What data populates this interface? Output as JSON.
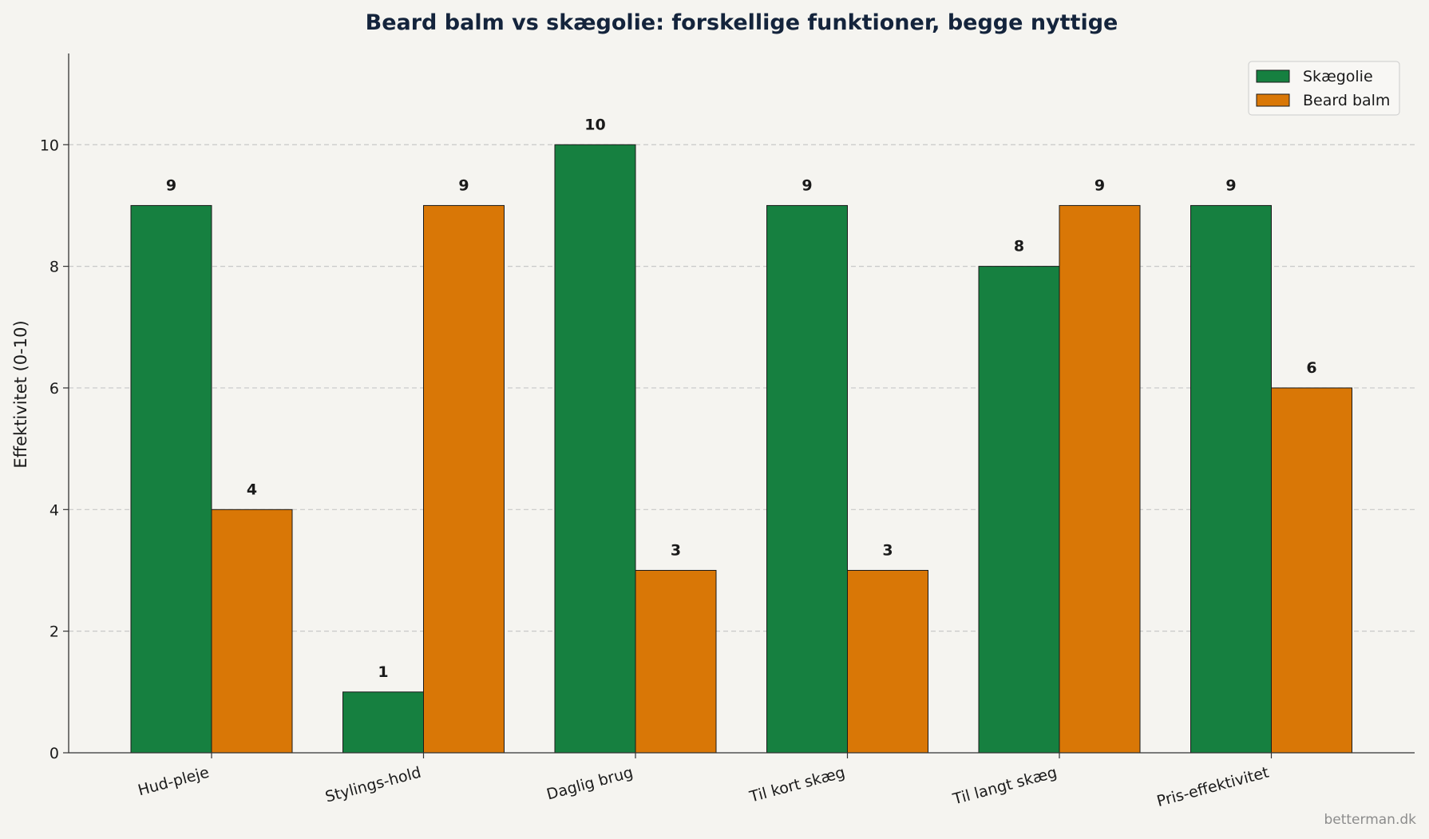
{
  "chart_data": {
    "type": "bar",
    "title": "Beard balm vs skægolie: forskellige funktioner, begge nyttige",
    "xlabel": "",
    "ylabel": "Effektivitet (0-10)",
    "ylim": [
      0,
      11.5
    ],
    "yticks": [
      0,
      2,
      4,
      6,
      8,
      10
    ],
    "grid": "y-dashed",
    "legend_position": "top-right",
    "categories": [
      "Hud-pleje",
      "Stylings-hold",
      "Daglig brug",
      "Til kort skæg",
      "Til langt skæg",
      "Pris-effektivitet"
    ],
    "series": [
      {
        "name": "Skægolie",
        "color": "#168040",
        "values": [
          9,
          1,
          10,
          9,
          8,
          9
        ]
      },
      {
        "name": "Beard balm",
        "color": "#d97706",
        "values": [
          4,
          9,
          3,
          3,
          9,
          6
        ]
      }
    ]
  },
  "watermark": "betterman.dk"
}
